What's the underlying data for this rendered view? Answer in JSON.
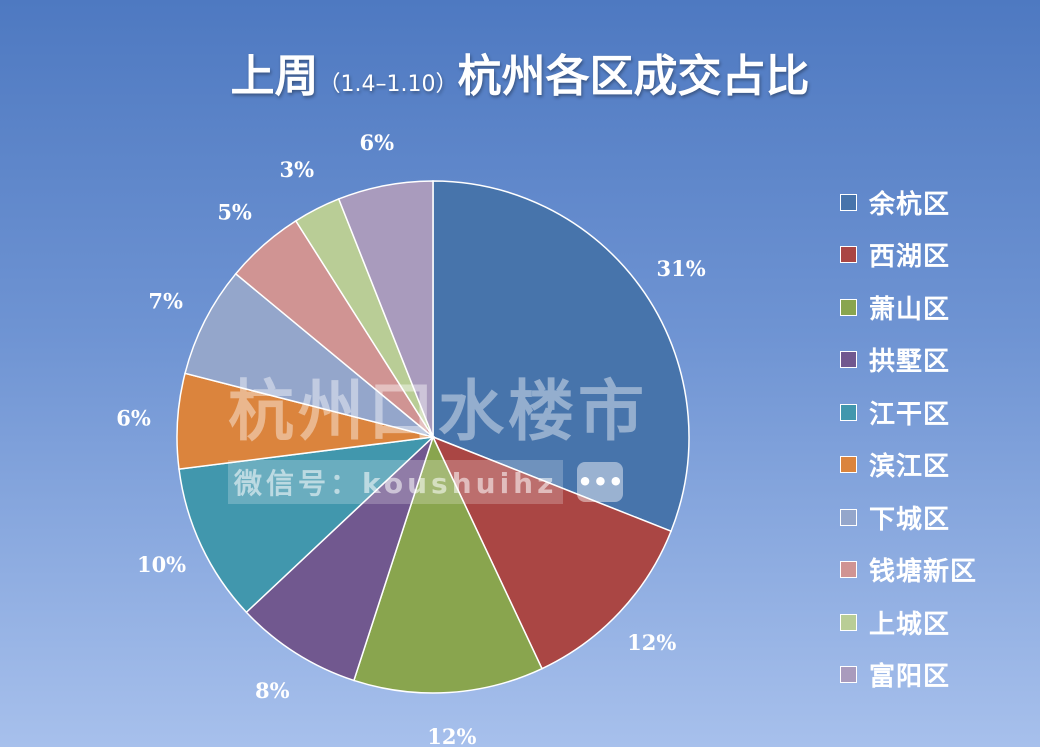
{
  "title": {
    "main_before": "上周",
    "period": "（1.4–1.10）",
    "main_after": "杭州各区成交占比"
  },
  "watermark": {
    "logo": "杭州口水楼市",
    "sub": "微信号：koushuihz",
    "icon": "chat-bubble-icon"
  },
  "chart_data": {
    "type": "pie",
    "title": "上周（1.4–1.10）杭州各区成交占比",
    "legend_position": "right",
    "start": "12 o'clock, clockwise",
    "slices": [
      {
        "label": "余杭区",
        "value": 31,
        "display": "31%",
        "color": "#4774ab"
      },
      {
        "label": "西湖区",
        "value": 12,
        "display": "12%",
        "color": "#aa4644"
      },
      {
        "label": "萧山区",
        "value": 12,
        "display": "12%",
        "color": "#89a54e"
      },
      {
        "label": "拱墅区",
        "value": 8,
        "display": "8%",
        "color": "#71588f"
      },
      {
        "label": "江干区",
        "value": 10,
        "display": "10%",
        "color": "#4197ad"
      },
      {
        "label": "滨江区",
        "value": 6,
        "display": "6%",
        "color": "#db843d"
      },
      {
        "label": "下城区",
        "value": 7,
        "display": "7%",
        "color": "#94a6cb"
      },
      {
        "label": "钱塘新区",
        "value": 5,
        "display": "5%",
        "color": "#d09493"
      },
      {
        "label": "上城区",
        "value": 3,
        "display": "3%",
        "color": "#b9cd96"
      },
      {
        "label": "富阳区",
        "value": 6,
        "display": "6%",
        "color": "#a99bbd"
      }
    ]
  }
}
